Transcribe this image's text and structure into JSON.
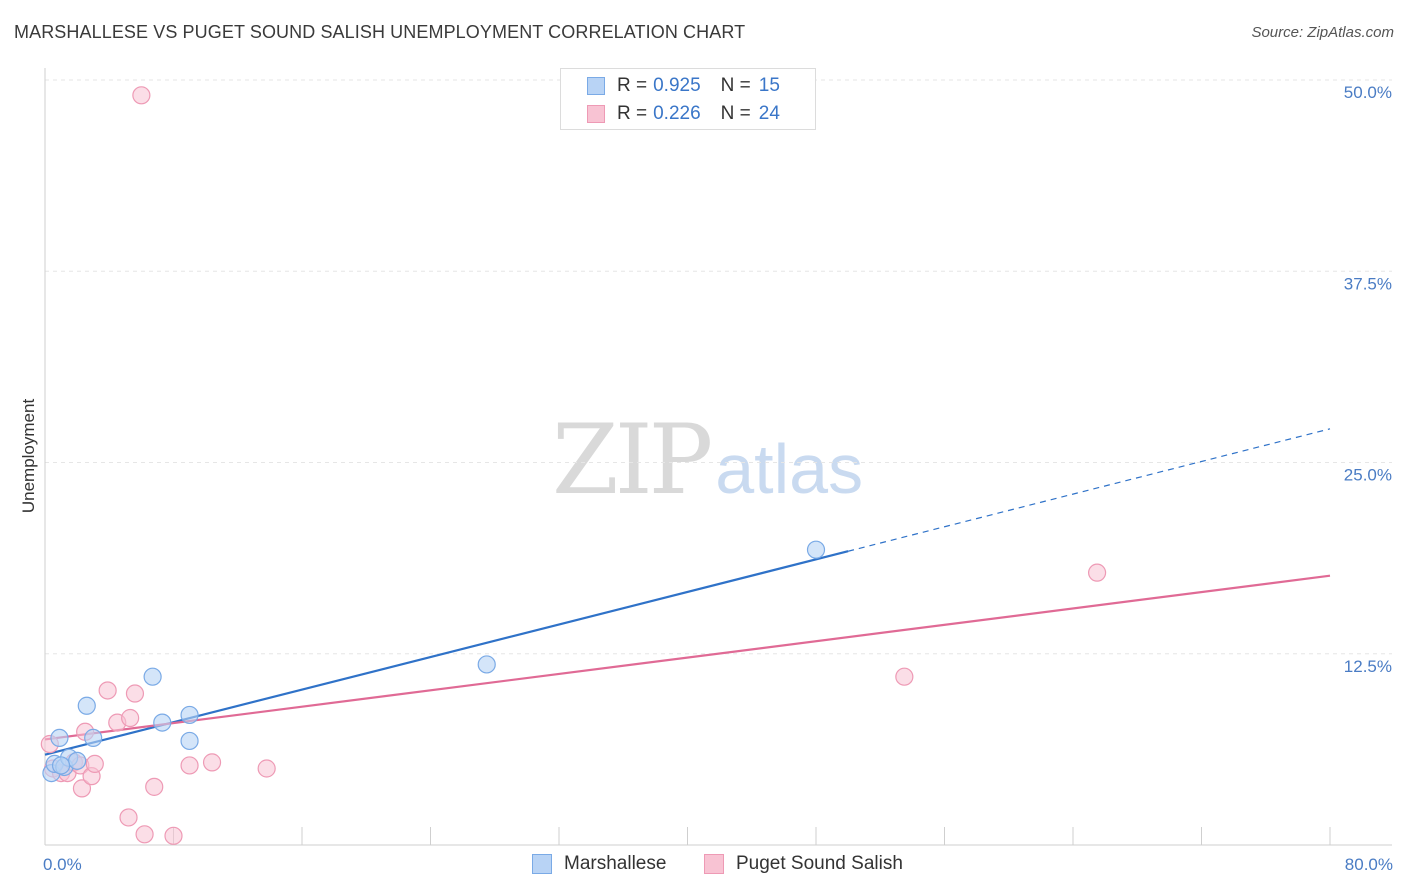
{
  "title": "MARSHALLESE VS PUGET SOUND SALISH UNEMPLOYMENT CORRELATION CHART",
  "source": "Source: ZipAtlas.com",
  "watermark": {
    "zip": "ZIP",
    "atlas": "atlas"
  },
  "legend": {
    "rows": [
      {
        "r_label": "R =",
        "r_value": "0.925",
        "n_label": "N =",
        "n_value": "15"
      },
      {
        "r_label": "R =",
        "r_value": "0.226",
        "n_label": "N =",
        "n_value": "24"
      }
    ]
  },
  "bottom_legend": [
    "Marshallese",
    "Puget Sound Salish"
  ],
  "colors": {
    "marshallese_fill": "#b8d3f5",
    "marshallese_stroke": "#7aaae6",
    "marshallese_line": "#2f72c8",
    "salish_fill": "#f8c3d3",
    "salish_stroke": "#ee9ab5",
    "salish_line": "#e06a95",
    "grid": "#e6e6e6",
    "axis_text": "#4a7cc4"
  },
  "chart_data": {
    "type": "scatter",
    "title": "MARSHALLESE VS PUGET SOUND SALISH UNEMPLOYMENT CORRELATION CHART",
    "xlabel": "",
    "ylabel": "Unemployment",
    "xlim": [
      0,
      80
    ],
    "ylim": [
      0,
      50
    ],
    "x_tick_labels": [
      "0.0%",
      "80.0%"
    ],
    "y_ticks": [
      12.5,
      25.0,
      37.5,
      50.0
    ],
    "y_tick_labels": [
      "12.5%",
      "25.0%",
      "37.5%",
      "50.0%"
    ],
    "grid": true,
    "legend_placement": "top-center",
    "series": [
      {
        "name": "Marshallese",
        "points": [
          [
            0.4,
            4.7
          ],
          [
            0.6,
            5.3
          ],
          [
            0.9,
            7.0
          ],
          [
            1.2,
            5.1
          ],
          [
            1.5,
            5.7
          ],
          [
            2.0,
            5.5
          ],
          [
            2.6,
            9.1
          ],
          [
            3.0,
            7.0
          ],
          [
            6.7,
            11.0
          ],
          [
            7.3,
            8.0
          ],
          [
            9.0,
            8.5
          ],
          [
            9.0,
            6.8
          ],
          [
            27.5,
            11.8
          ],
          [
            48.0,
            19.3
          ],
          [
            1.0,
            5.2
          ]
        ],
        "trend": {
          "x0": 0,
          "y0": 5.9,
          "x1": 50,
          "y1": 19.2,
          "dashed_to_x": 80,
          "dashed_to_y": 27.2
        }
      },
      {
        "name": "Puget Sound Salish",
        "points": [
          [
            0.3,
            6.6
          ],
          [
            0.5,
            5.0
          ],
          [
            1.0,
            4.7
          ],
          [
            1.4,
            4.7
          ],
          [
            1.8,
            5.4
          ],
          [
            2.2,
            5.2
          ],
          [
            2.3,
            3.7
          ],
          [
            2.5,
            7.4
          ],
          [
            2.9,
            4.5
          ],
          [
            3.1,
            5.3
          ],
          [
            3.9,
            10.1
          ],
          [
            4.5,
            8.0
          ],
          [
            5.2,
            1.8
          ],
          [
            5.3,
            8.3
          ],
          [
            5.6,
            9.9
          ],
          [
            6.2,
            0.7
          ],
          [
            6.8,
            3.8
          ],
          [
            6.0,
            49.0
          ],
          [
            8.0,
            0.6
          ],
          [
            9.0,
            5.2
          ],
          [
            10.4,
            5.4
          ],
          [
            13.8,
            5.0
          ],
          [
            53.5,
            11.0
          ],
          [
            65.5,
            17.8
          ]
        ],
        "trend": {
          "x0": 0,
          "y0": 6.9,
          "x1": 80,
          "y1": 17.6
        }
      }
    ]
  }
}
